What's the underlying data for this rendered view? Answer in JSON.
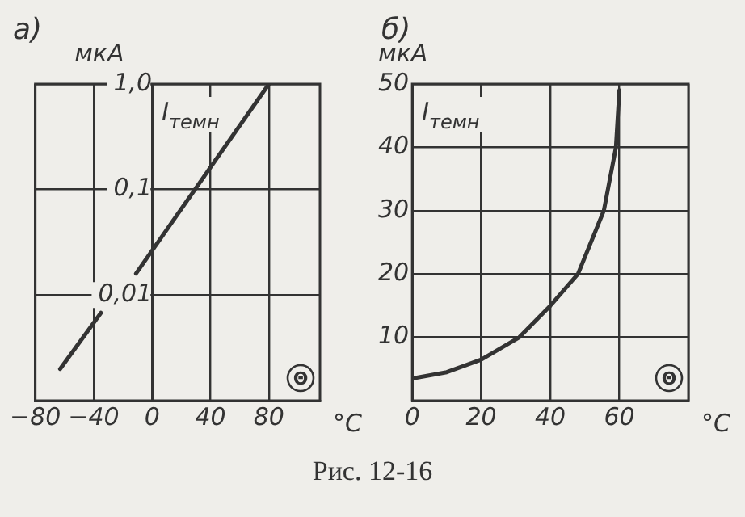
{
  "chart_data": [
    {
      "type": "line",
      "title": "а)",
      "xlabel": "°C",
      "ylabel": "мкА",
      "log": "y",
      "grid": true,
      "marker": "none",
      "line_style": "solid",
      "legend": false,
      "x": [
        -63,
        -35,
        -25,
        -11,
        80
      ],
      "series": [
        {
          "color": "#333333",
          "values": [
            0.002,
            0.0068,
            null,
            0.016,
            1.0
          ]
        }
      ],
      "xlim": [
        -80,
        115
      ],
      "xticks": [
        -80,
        -40,
        0,
        40,
        80
      ],
      "ylim": [
        0.001,
        1
      ],
      "yticks": [
        {
          "value": 0.001,
          "label": null
        },
        {
          "value": 0.01,
          "label": "0,01"
        },
        {
          "value": 0.1,
          "label": "0,1"
        },
        {
          "value": 1,
          "label": "1,0"
        }
      ],
      "annotations": [
        "I$_{темн}$",
        "Θ"
      ]
    },
    {
      "type": "line",
      "title": "б)",
      "xlabel": "°C",
      "ylabel": "мкА",
      "grid": true,
      "marker": "none",
      "line_style": "solid",
      "legend": false,
      "x": [
        0,
        10,
        20,
        31,
        40,
        48,
        55.5,
        59,
        60
      ],
      "series": [
        {
          "color": "#333333",
          "values": [
            3.5,
            4.5,
            6.5,
            10,
            15,
            20,
            30,
            40,
            49
          ]
        }
      ],
      "xlim": [
        0,
        80
      ],
      "xticks": [
        0,
        20,
        40,
        60,
        {
          "value": 80,
          "label": null
        }
      ],
      "ylim": [
        0,
        50
      ],
      "yticks": [
        {
          "value": 0,
          "label": null
        },
        10,
        20,
        30,
        40,
        50
      ],
      "annotations": [
        "I$_{темн}$",
        "Θ",
        "Рис. 12-16"
      ]
    }
  ]
}
